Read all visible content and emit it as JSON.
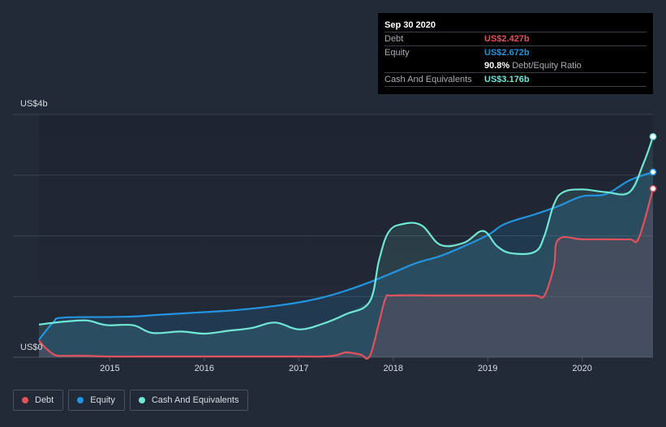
{
  "tooltip": {
    "date": "Sep 30 2020",
    "debt_label": "Debt",
    "debt_value": "US$2.427b",
    "equity_label": "Equity",
    "equity_value": "US$2.672b",
    "ratio_value": "90.8%",
    "ratio_label": "Debt/Equity Ratio",
    "cash_label": "Cash And Equivalents",
    "cash_value": "US$3.176b"
  },
  "legend": [
    {
      "label": "Debt",
      "color": "#e2525c"
    },
    {
      "label": "Equity",
      "color": "#2394df"
    },
    {
      "label": "Cash And Equivalents",
      "color": "#71e7d6"
    }
  ],
  "chart_data": {
    "type": "line",
    "ylabel_top": "US$4b",
    "ylabel_bottom": "US$0",
    "ylim": [
      0,
      3.5
    ],
    "xlim": [
      2014.25,
      2020.75
    ],
    "x_ticks": [
      "2015",
      "2016",
      "2017",
      "2018",
      "2019",
      "2020"
    ],
    "colors": {
      "debt": "#e2525c",
      "equity": "#2394df",
      "cash": "#71e7d6"
    },
    "series": [
      {
        "name": "Debt",
        "x": [
          2014.25,
          2014.33,
          2014.42,
          2014.5,
          2014.75,
          2015.0,
          2015.5,
          2016.0,
          2016.5,
          2017.0,
          2017.25,
          2017.4,
          2017.5,
          2017.65,
          2017.75,
          2017.85,
          2017.92,
          2018.0,
          2018.5,
          2019.0,
          2019.25,
          2019.5,
          2019.6,
          2019.7,
          2019.75,
          2020.0,
          2020.25,
          2020.5,
          2020.6,
          2020.75
        ],
        "values": [
          0.24,
          0.12,
          0.03,
          0.02,
          0.02,
          0.01,
          0.01,
          0.01,
          0.01,
          0.01,
          0.01,
          0.03,
          0.07,
          0.04,
          0.01,
          0.5,
          0.85,
          0.89,
          0.89,
          0.89,
          0.89,
          0.89,
          0.89,
          1.3,
          1.7,
          1.7,
          1.7,
          1.7,
          1.72,
          2.43
        ]
      },
      {
        "name": "Equity",
        "x": [
          2014.25,
          2014.4,
          2014.5,
          2015.0,
          2015.3,
          2015.5,
          2016.0,
          2016.25,
          2016.5,
          2016.75,
          2017.0,
          2017.25,
          2017.5,
          2017.75,
          2018.0,
          2018.25,
          2018.5,
          2018.75,
          2019.0,
          2019.15,
          2019.3,
          2019.5,
          2019.75,
          2020.0,
          2020.25,
          2020.5,
          2020.75
        ],
        "values": [
          0.25,
          0.5,
          0.57,
          0.58,
          0.59,
          0.61,
          0.65,
          0.67,
          0.7,
          0.74,
          0.79,
          0.86,
          0.96,
          1.08,
          1.22,
          1.36,
          1.46,
          1.6,
          1.76,
          1.9,
          1.98,
          2.06,
          2.18,
          2.32,
          2.35,
          2.55,
          2.67
        ]
      },
      {
        "name": "Cash And Equivalents",
        "x": [
          2014.25,
          2014.5,
          2014.75,
          2014.9,
          2015.0,
          2015.25,
          2015.45,
          2015.75,
          2016.0,
          2016.25,
          2016.5,
          2016.75,
          2017.0,
          2017.25,
          2017.5,
          2017.75,
          2017.85,
          2017.95,
          2018.1,
          2018.3,
          2018.5,
          2018.75,
          2018.95,
          2019.1,
          2019.25,
          2019.5,
          2019.6,
          2019.7,
          2019.8,
          2020.0,
          2020.25,
          2020.5,
          2020.65,
          2020.75
        ],
        "values": [
          0.47,
          0.51,
          0.53,
          0.48,
          0.46,
          0.46,
          0.35,
          0.37,
          0.34,
          0.38,
          0.42,
          0.5,
          0.4,
          0.48,
          0.62,
          0.8,
          1.4,
          1.8,
          1.92,
          1.9,
          1.62,
          1.65,
          1.82,
          1.6,
          1.5,
          1.52,
          1.75,
          2.2,
          2.38,
          2.42,
          2.38,
          2.38,
          2.8,
          3.18
        ]
      }
    ]
  }
}
